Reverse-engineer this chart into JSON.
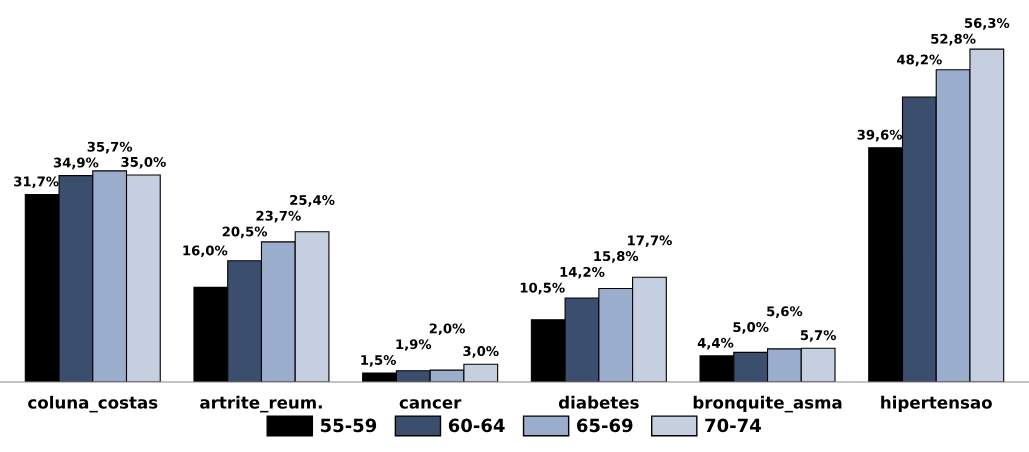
{
  "chart_data": {
    "type": "bar",
    "categories": [
      "coluna_costas",
      "artrite_reum.",
      "cancer",
      "diabetes",
      "bronquite_asma",
      "hipertensao"
    ],
    "series": [
      {
        "name": "55-59",
        "color": "#000000",
        "values": [
          31.7,
          16.0,
          1.5,
          10.5,
          4.4,
          39.6
        ],
        "value_labels": [
          "31,7%",
          "16,0%",
          "1,5%",
          "10,5%",
          "4,4%",
          "39,6%"
        ]
      },
      {
        "name": "60-64",
        "color": "#3b4e6e",
        "values": [
          34.9,
          20.5,
          1.9,
          14.2,
          5.0,
          48.2
        ],
        "value_labels": [
          "34,9%",
          "20,5%",
          "1,9%",
          "14,2%",
          "5,0%",
          "48,2%"
        ]
      },
      {
        "name": "65-69",
        "color": "#9aadcc",
        "values": [
          35.7,
          23.7,
          2.0,
          15.8,
          5.6,
          52.8
        ],
        "value_labels": [
          "35,7%",
          "23,7%",
          "2,0%",
          "15,8%",
          "5,6%",
          "52,8%"
        ]
      },
      {
        "name": "70-74",
        "color": "#c5cfe0",
        "values": [
          35.0,
          25.4,
          3.0,
          17.7,
          5.7,
          56.3
        ],
        "value_labels": [
          "35,0%",
          "25,4%",
          "3,0%",
          "17,7%",
          "5,7%",
          "56,3%"
        ]
      }
    ],
    "legend": "bottom",
    "grid": false
  }
}
